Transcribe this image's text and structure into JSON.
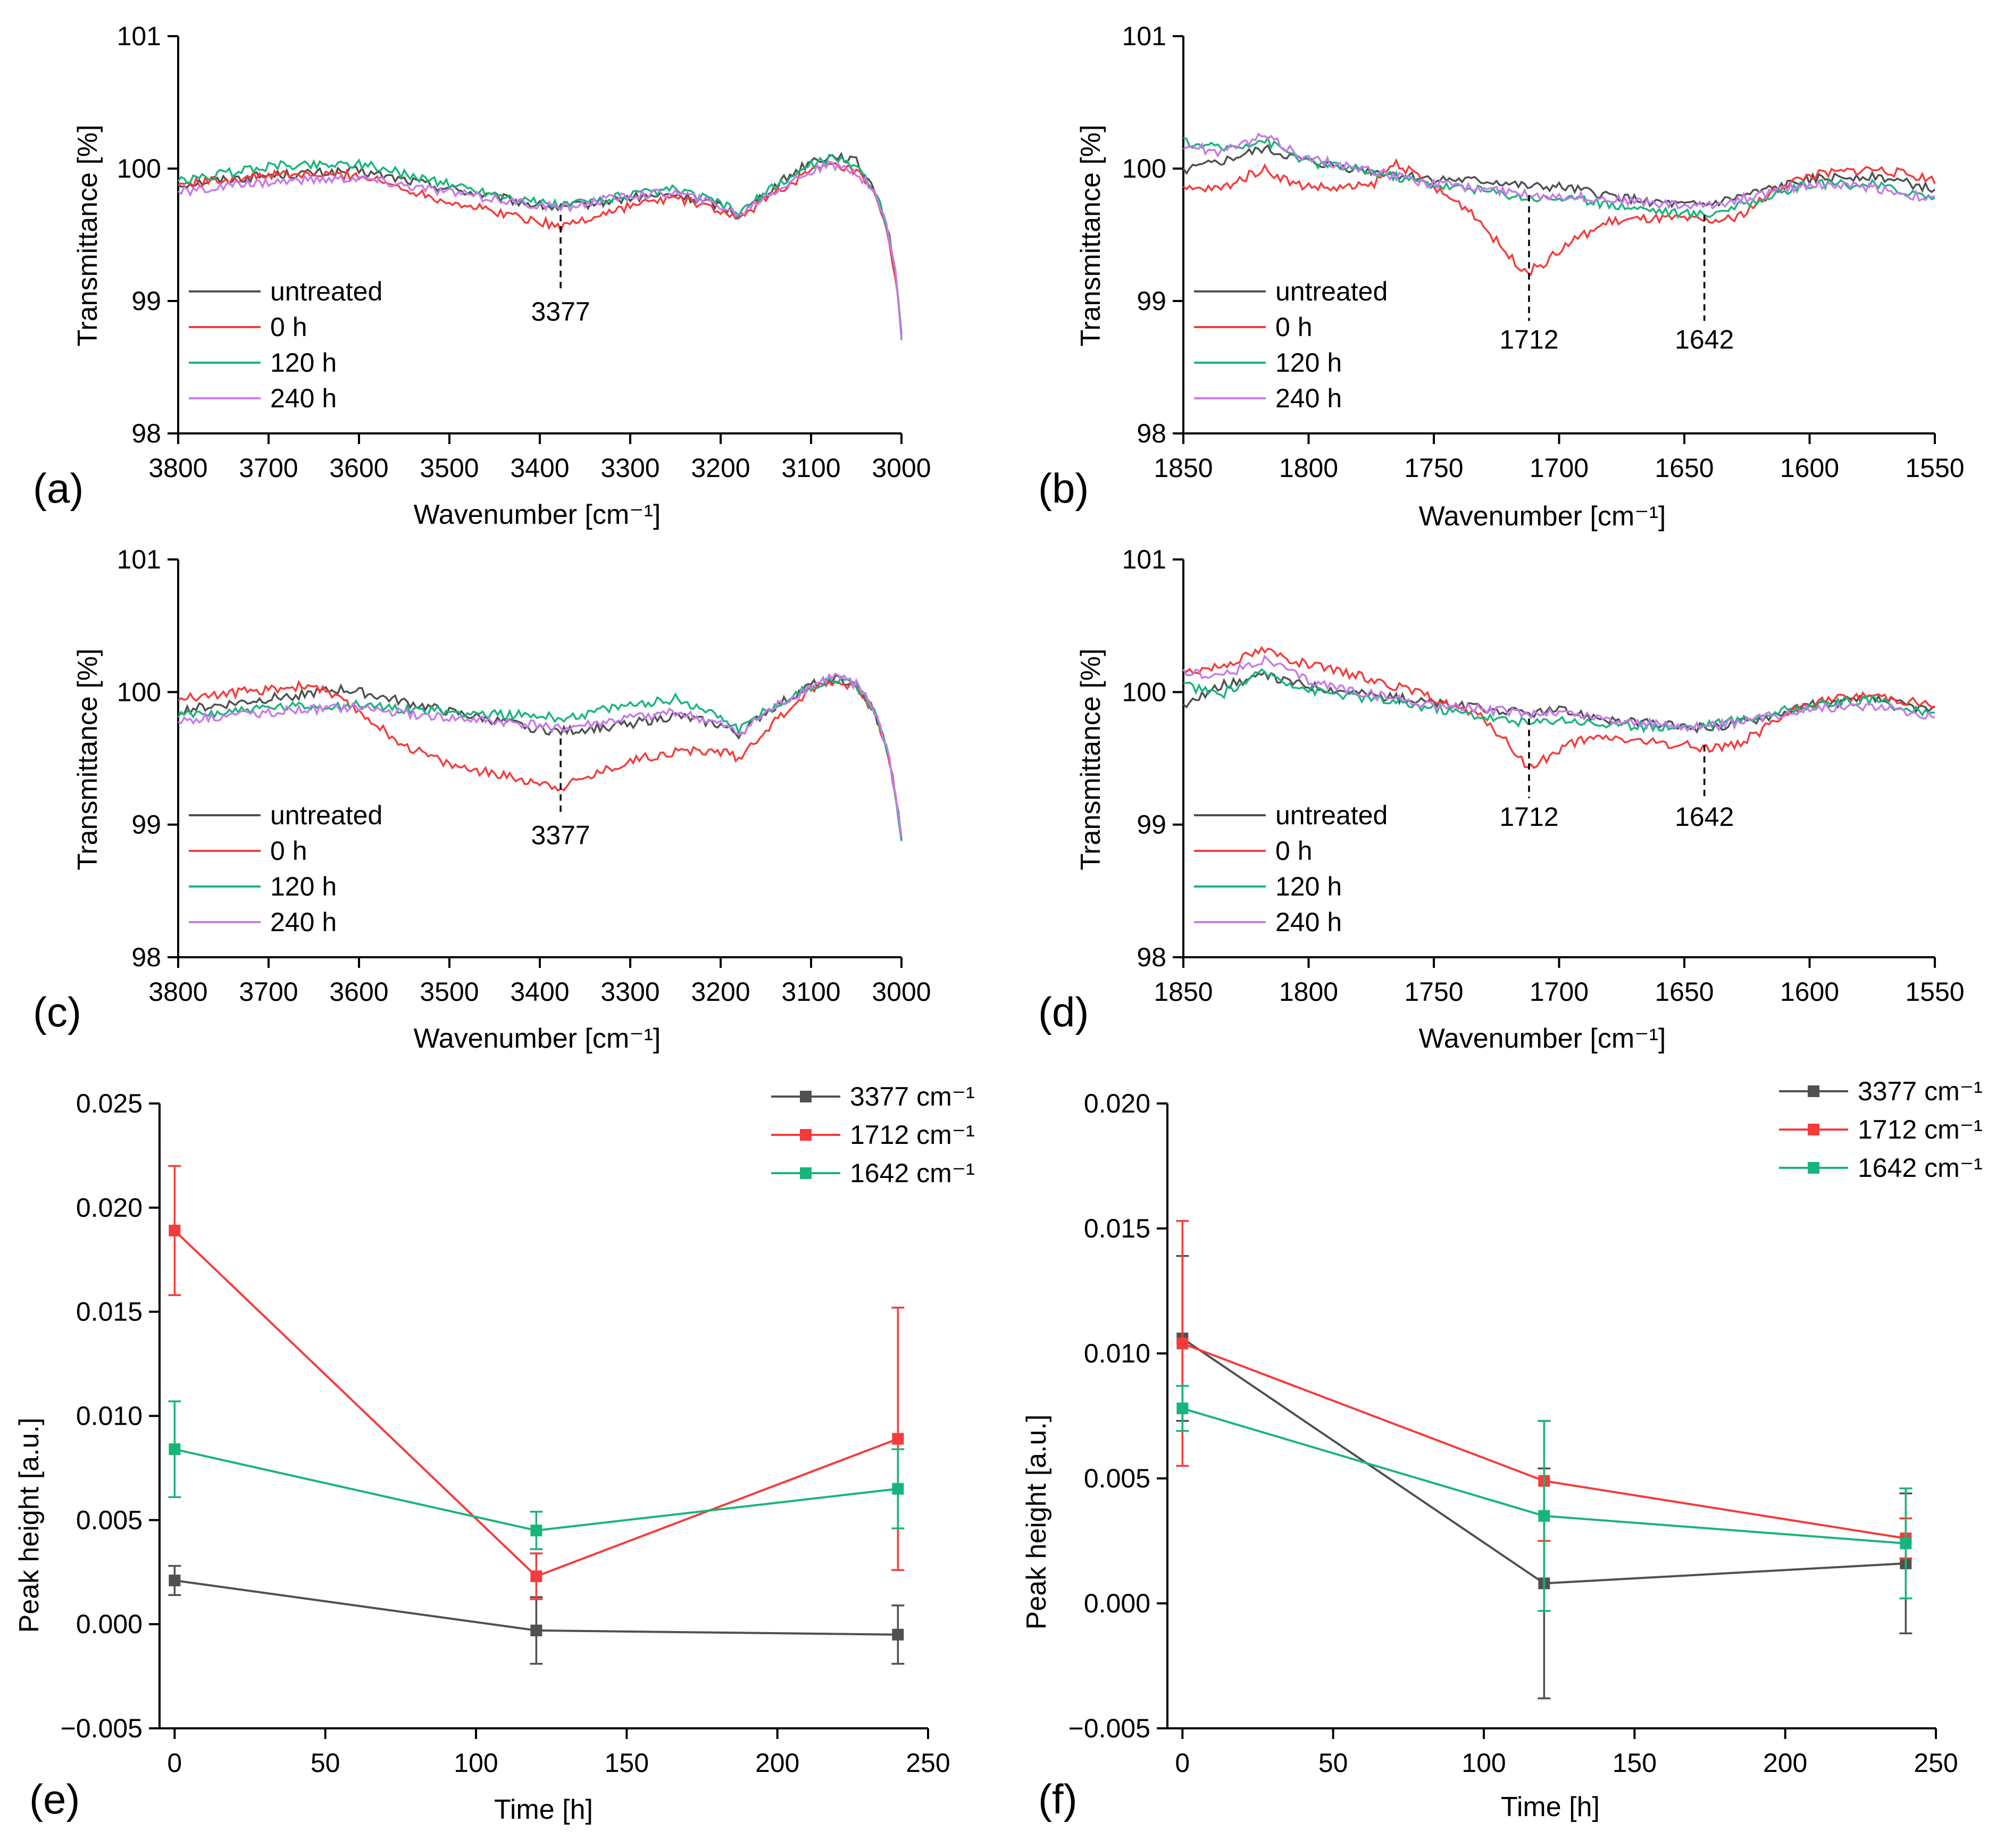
{
  "colors": {
    "untreated": "#505050",
    "h0": "#F53B3B",
    "h120": "#18B57A",
    "h240": "#C77BEA",
    "p3377": "#505050",
    "p1712": "#F53B3B",
    "p1642": "#18B57A",
    "axis": "#000000"
  },
  "chart_data": [
    {
      "panel": "(a)",
      "type": "line",
      "xlabel": "Wavenumber [cm⁻¹]",
      "ylabel": "Transmittance [%]",
      "xlim": [
        3800,
        3000
      ],
      "ylim": [
        98,
        101
      ],
      "xticks": [
        3800,
        3700,
        3600,
        3500,
        3400,
        3300,
        3200,
        3100,
        3000
      ],
      "yticks": [
        98,
        99,
        100,
        101
      ],
      "legend": [
        "untreated",
        "0 h",
        "120 h",
        "240 h"
      ],
      "annotations": [
        {
          "text": "3377",
          "x": 3377,
          "y_top": 99.65,
          "y_bottom": 99.06
        }
      ],
      "series": [
        {
          "name": "untreated",
          "color_key": "untreated",
          "x": [
            3800,
            3700,
            3600,
            3500,
            3400,
            3377,
            3300,
            3250,
            3200,
            3180,
            3150,
            3100,
            3070,
            3050,
            3030,
            3015,
            3005,
            3000
          ],
          "y": [
            99.88,
            99.95,
            99.98,
            99.85,
            99.72,
            99.7,
            99.78,
            99.8,
            99.72,
            99.64,
            99.82,
            100.06,
            100.1,
            100.05,
            99.85,
            99.55,
            99.15,
            98.72
          ]
        },
        {
          "name": "0 h",
          "color_key": "h0",
          "x": [
            3800,
            3700,
            3600,
            3500,
            3400,
            3377,
            3300,
            3250,
            3200,
            3180,
            3150,
            3100,
            3080,
            3050,
            3030,
            3015,
            3005,
            3000
          ],
          "y": [
            99.88,
            99.95,
            99.95,
            99.75,
            99.6,
            99.56,
            99.72,
            99.78,
            99.68,
            99.61,
            99.78,
            99.98,
            100.02,
            99.98,
            99.8,
            99.5,
            99.1,
            98.72
          ]
        },
        {
          "name": "120 h",
          "color_key": "h120",
          "x": [
            3800,
            3700,
            3600,
            3500,
            3400,
            3377,
            3300,
            3250,
            3200,
            3180,
            3150,
            3100,
            3080,
            3050,
            3030,
            3015,
            3005,
            3000
          ],
          "y": [
            99.9,
            100.02,
            100.04,
            99.88,
            99.74,
            99.72,
            99.8,
            99.84,
            99.74,
            99.66,
            99.82,
            100.03,
            100.08,
            100.03,
            99.84,
            99.55,
            99.15,
            98.7
          ]
        },
        {
          "name": "240 h",
          "color_key": "h240",
          "x": [
            3800,
            3700,
            3600,
            3500,
            3400,
            3377,
            3300,
            3250,
            3200,
            3180,
            3150,
            3100,
            3080,
            3050,
            3030,
            3015,
            3005,
            3000
          ],
          "y": [
            99.82,
            99.9,
            99.93,
            99.82,
            99.72,
            99.7,
            99.8,
            99.82,
            99.72,
            99.65,
            99.8,
            99.98,
            100.02,
            99.98,
            99.82,
            99.55,
            99.15,
            98.72
          ]
        }
      ]
    },
    {
      "panel": "(b)",
      "type": "line",
      "xlabel": "Wavenumber [cm⁻¹]",
      "ylabel": "Transmittance [%]",
      "xlim": [
        1850,
        1550
      ],
      "ylim": [
        98,
        101
      ],
      "xticks": [
        1850,
        1800,
        1750,
        1700,
        1650,
        1600,
        1550
      ],
      "yticks": [
        98,
        99,
        100,
        101
      ],
      "legend": [
        "untreated",
        "0 h",
        "120 h",
        "240 h"
      ],
      "annotations": [
        {
          "text": "1712",
          "x": 1712,
          "y_top": 99.8,
          "y_bottom": 98.85
        },
        {
          "text": "1642",
          "x": 1642,
          "y_top": 99.65,
          "y_bottom": 98.85
        }
      ],
      "series": [
        {
          "name": "untreated",
          "color_key": "untreated",
          "x": [
            1850,
            1835,
            1818,
            1800,
            1775,
            1750,
            1725,
            1712,
            1700,
            1675,
            1650,
            1640,
            1625,
            1600,
            1575,
            1550
          ],
          "y": [
            99.98,
            100.05,
            100.15,
            100.05,
            99.98,
            99.92,
            99.9,
            99.86,
            99.86,
            99.78,
            99.72,
            99.73,
            99.8,
            99.92,
            99.95,
            99.84
          ]
        },
        {
          "name": "0 h",
          "color_key": "h0",
          "x": [
            1850,
            1835,
            1818,
            1805,
            1790,
            1775,
            1765,
            1750,
            1735,
            1725,
            1718,
            1712,
            1705,
            1695,
            1680,
            1665,
            1650,
            1642,
            1630,
            1620,
            1610,
            1600,
            1575,
            1550
          ],
          "y": [
            99.84,
            99.85,
            100.0,
            99.88,
            99.85,
            99.87,
            100.05,
            99.85,
            99.68,
            99.45,
            99.3,
            99.22,
            99.3,
            99.45,
            99.6,
            99.62,
            99.62,
            99.6,
            99.62,
            99.75,
            99.88,
            99.95,
            100.0,
            99.92
          ]
        },
        {
          "name": "120 h",
          "color_key": "h120",
          "x": [
            1850,
            1835,
            1818,
            1800,
            1775,
            1750,
            1725,
            1712,
            1700,
            1675,
            1650,
            1640,
            1625,
            1600,
            1575,
            1550
          ],
          "y": [
            100.2,
            100.15,
            100.22,
            100.05,
            99.98,
            99.88,
            99.82,
            99.78,
            99.78,
            99.72,
            99.66,
            99.66,
            99.74,
            99.88,
            99.88,
            99.78
          ]
        },
        {
          "name": "240 h",
          "color_key": "h240",
          "x": [
            1850,
            1835,
            1818,
            1800,
            1775,
            1750,
            1725,
            1712,
            1700,
            1675,
            1650,
            1640,
            1625,
            1600,
            1575,
            1550
          ],
          "y": [
            100.18,
            100.12,
            100.25,
            100.08,
            99.98,
            99.88,
            99.84,
            99.8,
            99.8,
            99.76,
            99.72,
            99.72,
            99.78,
            99.88,
            99.86,
            99.76
          ]
        }
      ]
    },
    {
      "panel": "(c)",
      "type": "line",
      "xlabel": "Wavenumber [cm⁻¹]",
      "ylabel": "Transmittance [%]",
      "xlim": [
        3800,
        3000
      ],
      "ylim": [
        98,
        101
      ],
      "xticks": [
        3800,
        3700,
        3600,
        3500,
        3400,
        3300,
        3200,
        3100,
        3000
      ],
      "yticks": [
        98,
        99,
        100,
        101
      ],
      "legend": [
        "untreated",
        "0 h",
        "120 h",
        "240 h"
      ],
      "annotations": [
        {
          "text": "3377",
          "x": 3377,
          "y_top": 99.65,
          "y_bottom": 99.06
        }
      ],
      "series": [
        {
          "name": "untreated",
          "color_key": "untreated",
          "x": [
            3800,
            3700,
            3620,
            3600,
            3500,
            3400,
            3377,
            3300,
            3250,
            3200,
            3180,
            3150,
            3100,
            3075,
            3050,
            3030,
            3015,
            3005,
            3000
          ],
          "y": [
            99.86,
            99.95,
            100.02,
            100.0,
            99.85,
            99.72,
            99.7,
            99.76,
            99.82,
            99.75,
            99.68,
            99.85,
            100.05,
            100.1,
            100.05,
            99.85,
            99.55,
            99.15,
            98.9
          ]
        },
        {
          "name": "0 h",
          "color_key": "h0",
          "x": [
            3800,
            3700,
            3650,
            3600,
            3550,
            3500,
            3450,
            3400,
            3377,
            3350,
            3300,
            3250,
            3200,
            3180,
            3150,
            3100,
            3075,
            3050,
            3030,
            3015,
            3005,
            3000
          ],
          "y": [
            99.95,
            100.02,
            100.05,
            99.85,
            99.6,
            99.45,
            99.38,
            99.32,
            99.28,
            99.35,
            99.48,
            99.55,
            99.55,
            99.5,
            99.72,
            100.02,
            100.08,
            100.04,
            99.85,
            99.55,
            99.15,
            98.9
          ]
        },
        {
          "name": "120 h",
          "color_key": "h120",
          "x": [
            3800,
            3700,
            3600,
            3500,
            3400,
            3377,
            3300,
            3250,
            3200,
            3180,
            3150,
            3100,
            3075,
            3050,
            3030,
            3015,
            3005,
            3000
          ],
          "y": [
            99.82,
            99.88,
            99.9,
            99.85,
            99.82,
            99.8,
            99.9,
            99.95,
            99.82,
            99.72,
            99.86,
            100.04,
            100.1,
            100.05,
            99.85,
            99.55,
            99.15,
            98.9
          ]
        },
        {
          "name": "240 h",
          "color_key": "h240",
          "x": [
            3800,
            3700,
            3600,
            3500,
            3400,
            3377,
            3300,
            3250,
            3200,
            3180,
            3150,
            3100,
            3075,
            3050,
            3030,
            3015,
            3005,
            3000
          ],
          "y": [
            99.78,
            99.85,
            99.88,
            99.8,
            99.75,
            99.72,
            99.8,
            99.85,
            99.75,
            99.68,
            99.84,
            100.04,
            100.12,
            100.06,
            99.86,
            99.56,
            99.15,
            98.9
          ]
        }
      ]
    },
    {
      "panel": "(d)",
      "type": "line",
      "xlabel": "Wavenumber [cm⁻¹]",
      "ylabel": "Transmittance [%]",
      "xlim": [
        1850,
        1550
      ],
      "ylim": [
        98,
        101
      ],
      "xticks": [
        1850,
        1800,
        1750,
        1700,
        1650,
        1600,
        1550
      ],
      "yticks": [
        98,
        99,
        100,
        101
      ],
      "legend": [
        "untreated",
        "0 h",
        "120 h",
        "240 h"
      ],
      "annotations": [
        {
          "text": "1712",
          "x": 1712,
          "y_top": 99.8,
          "y_bottom": 99.2
        },
        {
          "text": "1642",
          "x": 1642,
          "y_top": 99.6,
          "y_bottom": 99.2
        }
      ],
      "series": [
        {
          "name": "untreated",
          "color_key": "untreated",
          "x": [
            1850,
            1835,
            1818,
            1800,
            1775,
            1750,
            1725,
            1712,
            1700,
            1675,
            1650,
            1640,
            1625,
            1600,
            1575,
            1550
          ],
          "y": [
            99.9,
            100.05,
            100.12,
            100.05,
            99.98,
            99.92,
            99.86,
            99.84,
            99.86,
            99.78,
            99.74,
            99.73,
            99.78,
            99.9,
            99.95,
            99.86
          ]
        },
        {
          "name": "0 h",
          "color_key": "h0",
          "x": [
            1850,
            1835,
            1818,
            1800,
            1775,
            1750,
            1730,
            1720,
            1712,
            1705,
            1695,
            1680,
            1665,
            1650,
            1642,
            1630,
            1620,
            1610,
            1600,
            1575,
            1550
          ],
          "y": [
            100.15,
            100.2,
            100.32,
            100.2,
            100.1,
            99.95,
            99.8,
            99.6,
            99.42,
            99.5,
            99.62,
            99.66,
            99.62,
            99.6,
            99.58,
            99.6,
            99.7,
            99.82,
            99.92,
            99.98,
            99.9
          ]
        },
        {
          "name": "120 h",
          "color_key": "h120",
          "x": [
            1850,
            1835,
            1818,
            1800,
            1775,
            1750,
            1725,
            1712,
            1700,
            1675,
            1650,
            1640,
            1625,
            1600,
            1575,
            1550
          ],
          "y": [
            100.05,
            99.98,
            100.15,
            100.02,
            99.95,
            99.88,
            99.8,
            99.76,
            99.8,
            99.74,
            99.74,
            99.76,
            99.8,
            99.9,
            99.94,
            99.82
          ]
        },
        {
          "name": "240 h",
          "color_key": "h240",
          "x": [
            1850,
            1835,
            1818,
            1800,
            1775,
            1750,
            1725,
            1712,
            1700,
            1675,
            1650,
            1640,
            1625,
            1600,
            1575,
            1550
          ],
          "y": [
            100.15,
            100.12,
            100.25,
            100.08,
            99.98,
            99.9,
            99.86,
            99.84,
            99.85,
            99.78,
            99.74,
            99.74,
            99.78,
            99.88,
            99.9,
            99.82
          ]
        }
      ]
    },
    {
      "panel": "(e)",
      "type": "line_errorbar",
      "xlabel": "Time [h]",
      "ylabel": "Peak height [a.u.]",
      "xlim": [
        -5,
        250
      ],
      "ylim": [
        -0.005,
        0.025
      ],
      "xticks": [
        0,
        50,
        100,
        150,
        200,
        250
      ],
      "yticks": [
        -0.005,
        0.0,
        0.005,
        0.01,
        0.015,
        0.02,
        0.025
      ],
      "ytick_labels": [
        "−0.005",
        "0.000",
        "0.005",
        "0.010",
        "0.015",
        "0.020",
        "0.025"
      ],
      "legend": [
        "3377 cm⁻¹",
        "1712 cm⁻¹",
        "1642 cm⁻¹"
      ],
      "series": [
        {
          "name": "3377 cm⁻¹",
          "color_key": "p3377",
          "x": [
            0,
            120,
            240
          ],
          "y": [
            0.0021,
            -0.0003,
            -0.0005
          ],
          "err": [
            0.0007,
            0.0016,
            0.0014
          ]
        },
        {
          "name": "1712 cm⁻¹",
          "color_key": "p1712",
          "x": [
            0,
            120,
            240
          ],
          "y": [
            0.0189,
            0.0023,
            0.0089
          ],
          "err": [
            0.0031,
            0.0011,
            0.0063
          ]
        },
        {
          "name": "1642 cm⁻¹",
          "color_key": "p1642",
          "x": [
            0,
            120,
            240
          ],
          "y": [
            0.0084,
            0.0045,
            0.0065
          ],
          "err": [
            0.0023,
            0.0009,
            0.0019
          ]
        }
      ]
    },
    {
      "panel": "(f)",
      "type": "line_errorbar",
      "xlabel": "Time [h]",
      "ylabel": "Peak height [a.u.]",
      "xlim": [
        -5,
        250
      ],
      "ylim": [
        -0.005,
        0.02
      ],
      "xticks": [
        0,
        50,
        100,
        150,
        200,
        250
      ],
      "yticks": [
        -0.005,
        0.0,
        0.005,
        0.01,
        0.015,
        0.02
      ],
      "ytick_labels": [
        "−0.005",
        "0.000",
        "0.005",
        "0.010",
        "0.015",
        "0.020"
      ],
      "legend": [
        "3377 cm⁻¹",
        "1712 cm⁻¹",
        "1642 cm⁻¹"
      ],
      "series": [
        {
          "name": "3377 cm⁻¹",
          "color_key": "p3377",
          "x": [
            0,
            120,
            240
          ],
          "y": [
            0.0106,
            0.0008,
            0.0016
          ],
          "err": [
            0.0033,
            0.0046,
            0.0028
          ]
        },
        {
          "name": "1712 cm⁻¹",
          "color_key": "p1712",
          "x": [
            0,
            120,
            240
          ],
          "y": [
            0.0104,
            0.0049,
            0.0026
          ],
          "err": [
            0.0049,
            0.0024,
            0.0008
          ]
        },
        {
          "name": "1642 cm⁻¹",
          "color_key": "p1642",
          "x": [
            0,
            120,
            240
          ],
          "y": [
            0.0078,
            0.0035,
            0.0024
          ],
          "err": [
            0.0009,
            0.0038,
            0.0022
          ]
        }
      ]
    }
  ]
}
